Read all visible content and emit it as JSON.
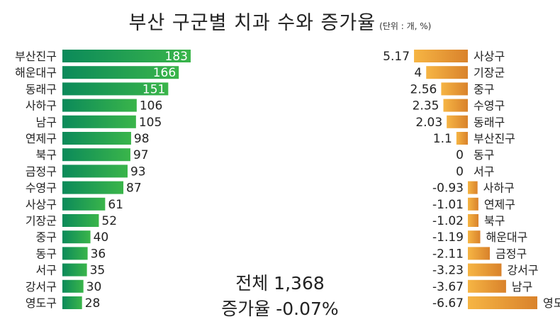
{
  "title": "부산 구군별 치과 수와 증가율",
  "unit_note": "(단위 : 개, %)",
  "summary": {
    "total": "전체 1,368",
    "growth": "증가율 -0.07%"
  },
  "colors": {
    "left_bar_start": "#0b8a5a",
    "left_bar_end": "#3ab54a",
    "right_bar_start": "#f4b13c",
    "right_bar_end": "#d9822b"
  },
  "chart_data": [
    {
      "type": "bar",
      "orientation": "horizontal",
      "categories": [
        "부산진구",
        "해운대구",
        "동래구",
        "사하구",
        "남구",
        "연제구",
        "북구",
        "금정구",
        "수영구",
        "사상구",
        "기장군",
        "중구",
        "동구",
        "서구",
        "강서구",
        "영도구"
      ],
      "values": [
        183,
        166,
        151,
        106,
        105,
        98,
        97,
        93,
        87,
        61,
        52,
        40,
        36,
        35,
        30,
        28
      ],
      "value_labels": [
        "183",
        "166",
        "151",
        "106",
        "105",
        "98",
        "97",
        "93",
        "87",
        "61",
        "52",
        "40",
        "36",
        "35",
        "30",
        "28"
      ],
      "xlim": [
        0,
        190
      ]
    },
    {
      "type": "bar",
      "orientation": "horizontal",
      "categories": [
        "사상구",
        "기장군",
        "중구",
        "수영구",
        "동래구",
        "부산진구",
        "동구",
        "서구",
        "사하구",
        "연제구",
        "북구",
        "해운대구",
        "금정구",
        "강서구",
        "남구",
        "영도구"
      ],
      "values": [
        5.17,
        4,
        2.56,
        2.35,
        2.03,
        1.1,
        0,
        0,
        -0.93,
        -1.01,
        -1.02,
        -1.19,
        -2.11,
        -3.23,
        -3.67,
        -6.67
      ],
      "value_labels": [
        "5.17",
        "4",
        "2.56",
        "2.35",
        "2.03",
        "1.1",
        "0",
        "0",
        "-0.93",
        "-1.01",
        "-1.02",
        "-1.19",
        "-2.11",
        "-3.23",
        "-3.67",
        "-6.67"
      ],
      "xlim": [
        0,
        7
      ]
    }
  ]
}
